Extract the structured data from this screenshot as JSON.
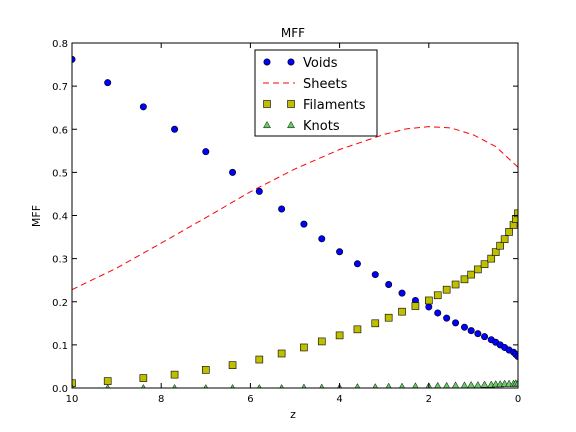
{
  "chart_data": {
    "type": "scatter",
    "title": "MFF",
    "xlabel": "z",
    "ylabel": "MFF",
    "xlim": [
      10,
      0
    ],
    "ylim": [
      0,
      0.8
    ],
    "x_ticks": [
      10,
      8,
      6,
      4,
      2,
      0
    ],
    "y_ticks": [
      0.0,
      0.1,
      0.2,
      0.3,
      0.4,
      0.5,
      0.6,
      0.7,
      0.8
    ],
    "x_tick_labels": [
      "10",
      "8",
      "6",
      "4",
      "2",
      "0"
    ],
    "y_tick_labels": [
      "0.0",
      "0.1",
      "0.2",
      "0.3",
      "0.4",
      "0.5",
      "0.6",
      "0.7",
      "0.8"
    ],
    "grid": false,
    "legend": "top-center",
    "x": [
      10.0,
      9.2,
      8.4,
      7.7,
      7.0,
      6.4,
      5.8,
      5.3,
      4.8,
      4.4,
      4.0,
      3.6,
      3.2,
      2.9,
      2.6,
      2.3,
      2.0,
      1.8,
      1.6,
      1.4,
      1.2,
      1.05,
      0.9,
      0.75,
      0.6,
      0.5,
      0.4,
      0.3,
      0.2,
      0.1,
      0.05,
      0.0
    ],
    "series": [
      {
        "name": "Voids",
        "style": "circle-markers",
        "color": "#0000ff",
        "values": [
          0.762,
          0.708,
          0.652,
          0.6,
          0.548,
          0.5,
          0.456,
          0.415,
          0.38,
          0.346,
          0.316,
          0.288,
          0.263,
          0.24,
          0.22,
          0.203,
          0.188,
          0.174,
          0.162,
          0.151,
          0.141,
          0.133,
          0.126,
          0.119,
          0.112,
          0.106,
          0.1,
          0.094,
          0.088,
          0.083,
          0.078,
          0.073
        ]
      },
      {
        "name": "Sheets",
        "style": "dashed-line",
        "color": "#ff0000",
        "x": [
          10,
          9,
          8,
          7,
          6,
          5,
          4,
          3,
          2.5,
          2,
          1.5,
          1,
          0.5,
          0
        ],
        "values": [
          0.228,
          0.278,
          0.336,
          0.395,
          0.455,
          0.508,
          0.553,
          0.588,
          0.601,
          0.606,
          0.603,
          0.587,
          0.56,
          0.512
        ]
      },
      {
        "name": "Filaments",
        "style": "square-markers",
        "color": "#bfbf00",
        "values": [
          0.011,
          0.016,
          0.023,
          0.031,
          0.042,
          0.053,
          0.066,
          0.08,
          0.094,
          0.108,
          0.122,
          0.136,
          0.15,
          0.163,
          0.177,
          0.19,
          0.203,
          0.215,
          0.228,
          0.24,
          0.252,
          0.263,
          0.275,
          0.287,
          0.3,
          0.315,
          0.33,
          0.345,
          0.362,
          0.378,
          0.392,
          0.405
        ]
      },
      {
        "name": "Knots",
        "style": "triangle-markers",
        "color": "#66cc66",
        "values": [
          0.0,
          0.0,
          0.0,
          0.0,
          0.0,
          0.0,
          0.0,
          0.0,
          0.001,
          0.001,
          0.001,
          0.002,
          0.002,
          0.003,
          0.003,
          0.004,
          0.004,
          0.005,
          0.005,
          0.006,
          0.006,
          0.007,
          0.007,
          0.008,
          0.008,
          0.009,
          0.009,
          0.01,
          0.01,
          0.01,
          0.011,
          0.011
        ]
      }
    ]
  }
}
